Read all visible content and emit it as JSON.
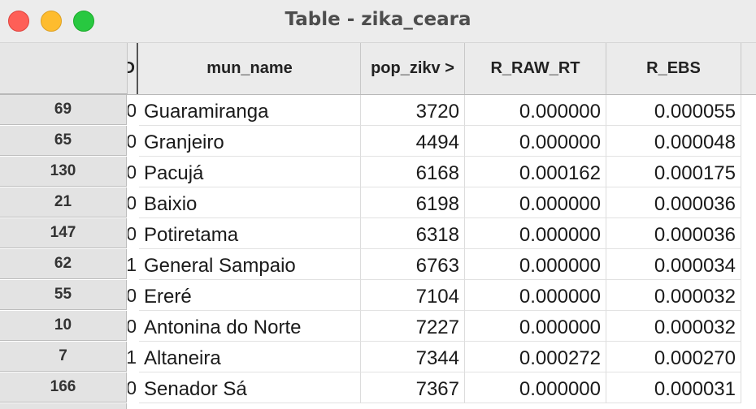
{
  "window": {
    "title": "Table - zika_ceara"
  },
  "columns": {
    "clipped_label": "D",
    "mun_name": "mun_name",
    "pop_zikv": "pop_zikv >",
    "r_raw_rt": "R_RAW_RT",
    "r_ebs": "R_EBS"
  },
  "rows": [
    {
      "id": "69",
      "clip": "0",
      "mun_name": "Guaramiranga",
      "pop_zikv": "3720",
      "r_raw_rt": "0.000000",
      "r_ebs": "0.000055"
    },
    {
      "id": "65",
      "clip": "0",
      "mun_name": "Granjeiro",
      "pop_zikv": "4494",
      "r_raw_rt": "0.000000",
      "r_ebs": "0.000048"
    },
    {
      "id": "130",
      "clip": "0",
      "mun_name": "Pacujá",
      "pop_zikv": "6168",
      "r_raw_rt": "0.000162",
      "r_ebs": "0.000175"
    },
    {
      "id": "21",
      "clip": "0",
      "mun_name": "Baixio",
      "pop_zikv": "6198",
      "r_raw_rt": "0.000000",
      "r_ebs": "0.000036"
    },
    {
      "id": "147",
      "clip": "0",
      "mun_name": "Potiretama",
      "pop_zikv": "6318",
      "r_raw_rt": "0.000000",
      "r_ebs": "0.000036"
    },
    {
      "id": "62",
      "clip": "1",
      "mun_name": "General Sampaio",
      "pop_zikv": "6763",
      "r_raw_rt": "0.000000",
      "r_ebs": "0.000034"
    },
    {
      "id": "55",
      "clip": "0",
      "mun_name": "Ereré",
      "pop_zikv": "7104",
      "r_raw_rt": "0.000000",
      "r_ebs": "0.000032"
    },
    {
      "id": "10",
      "clip": "0",
      "mun_name": "Antonina do Norte",
      "pop_zikv": "7227",
      "r_raw_rt": "0.000000",
      "r_ebs": "0.000032"
    },
    {
      "id": "7",
      "clip": "1",
      "mun_name": "Altaneira",
      "pop_zikv": "7344",
      "r_raw_rt": "0.000272",
      "r_ebs": "0.000270"
    },
    {
      "id": "166",
      "clip": "0",
      "mun_name": "Senador Sá",
      "pop_zikv": "7367",
      "r_raw_rt": "0.000000",
      "r_ebs": "0.000031"
    }
  ]
}
